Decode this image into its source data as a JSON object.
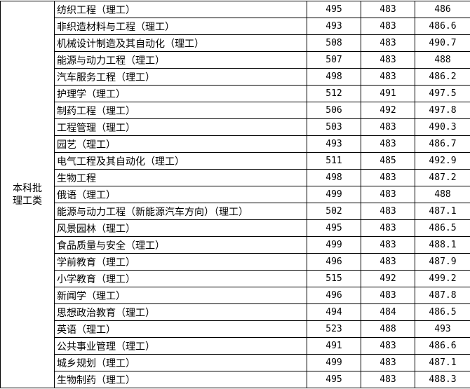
{
  "category": [
    "本科批",
    "理工类"
  ],
  "rows": [
    {
      "major": "纺织工程（理工）",
      "max": "495",
      "min": "483",
      "avg": "486"
    },
    {
      "major": "非织造材料与工程（理工）",
      "max": "493",
      "min": "483",
      "avg": "486.6"
    },
    {
      "major": "机械设计制造及其自动化（理工）",
      "max": "508",
      "min": "483",
      "avg": "490.7"
    },
    {
      "major": "能源与动力工程（理工）",
      "max": "507",
      "min": "483",
      "avg": "488"
    },
    {
      "major": "汽车服务工程（理工）",
      "max": "498",
      "min": "483",
      "avg": "486.2"
    },
    {
      "major": "护理学（理工）",
      "max": "512",
      "min": "491",
      "avg": "497.5"
    },
    {
      "major": "制药工程（理工）",
      "max": "506",
      "min": "492",
      "avg": "497.8"
    },
    {
      "major": "工程管理（理工）",
      "max": "503",
      "min": "483",
      "avg": "490.3"
    },
    {
      "major": "园艺（理工）",
      "max": "493",
      "min": "483",
      "avg": "486.7"
    },
    {
      "major": "电气工程及其自动化（理工）",
      "max": "511",
      "min": "485",
      "avg": "492.9"
    },
    {
      "major": "生物工程",
      "max": "498",
      "min": "483",
      "avg": "487.2"
    },
    {
      "major": "俄语（理工）",
      "max": "499",
      "min": "483",
      "avg": "488"
    },
    {
      "major": "能源与动力工程（新能源汽车方向）（理工）",
      "max": "502",
      "min": "483",
      "avg": "487.1"
    },
    {
      "major": "风景园林（理工）",
      "max": "495",
      "min": "483",
      "avg": "486.5"
    },
    {
      "major": "食品质量与安全（理工）",
      "max": "499",
      "min": "483",
      "avg": "488.1"
    },
    {
      "major": "学前教育（理工）",
      "max": "496",
      "min": "483",
      "avg": "487.9"
    },
    {
      "major": "小学教育（理工）",
      "max": "515",
      "min": "492",
      "avg": "499.2"
    },
    {
      "major": "新闻学（理工）",
      "max": "496",
      "min": "483",
      "avg": "487.8"
    },
    {
      "major": "思想政治教育（理工）",
      "max": "494",
      "min": "484",
      "avg": "486.5"
    },
    {
      "major": "英语（理工）",
      "max": "523",
      "min": "488",
      "avg": "493"
    },
    {
      "major": "公共事业管理（理工）",
      "max": "491",
      "min": "483",
      "avg": "486.6"
    },
    {
      "major": "城乡规划（理工）",
      "max": "499",
      "min": "483",
      "avg": "487.1"
    },
    {
      "major": "生物制药（理工）",
      "max": "495",
      "min": "483",
      "avg": "488.3"
    }
  ]
}
